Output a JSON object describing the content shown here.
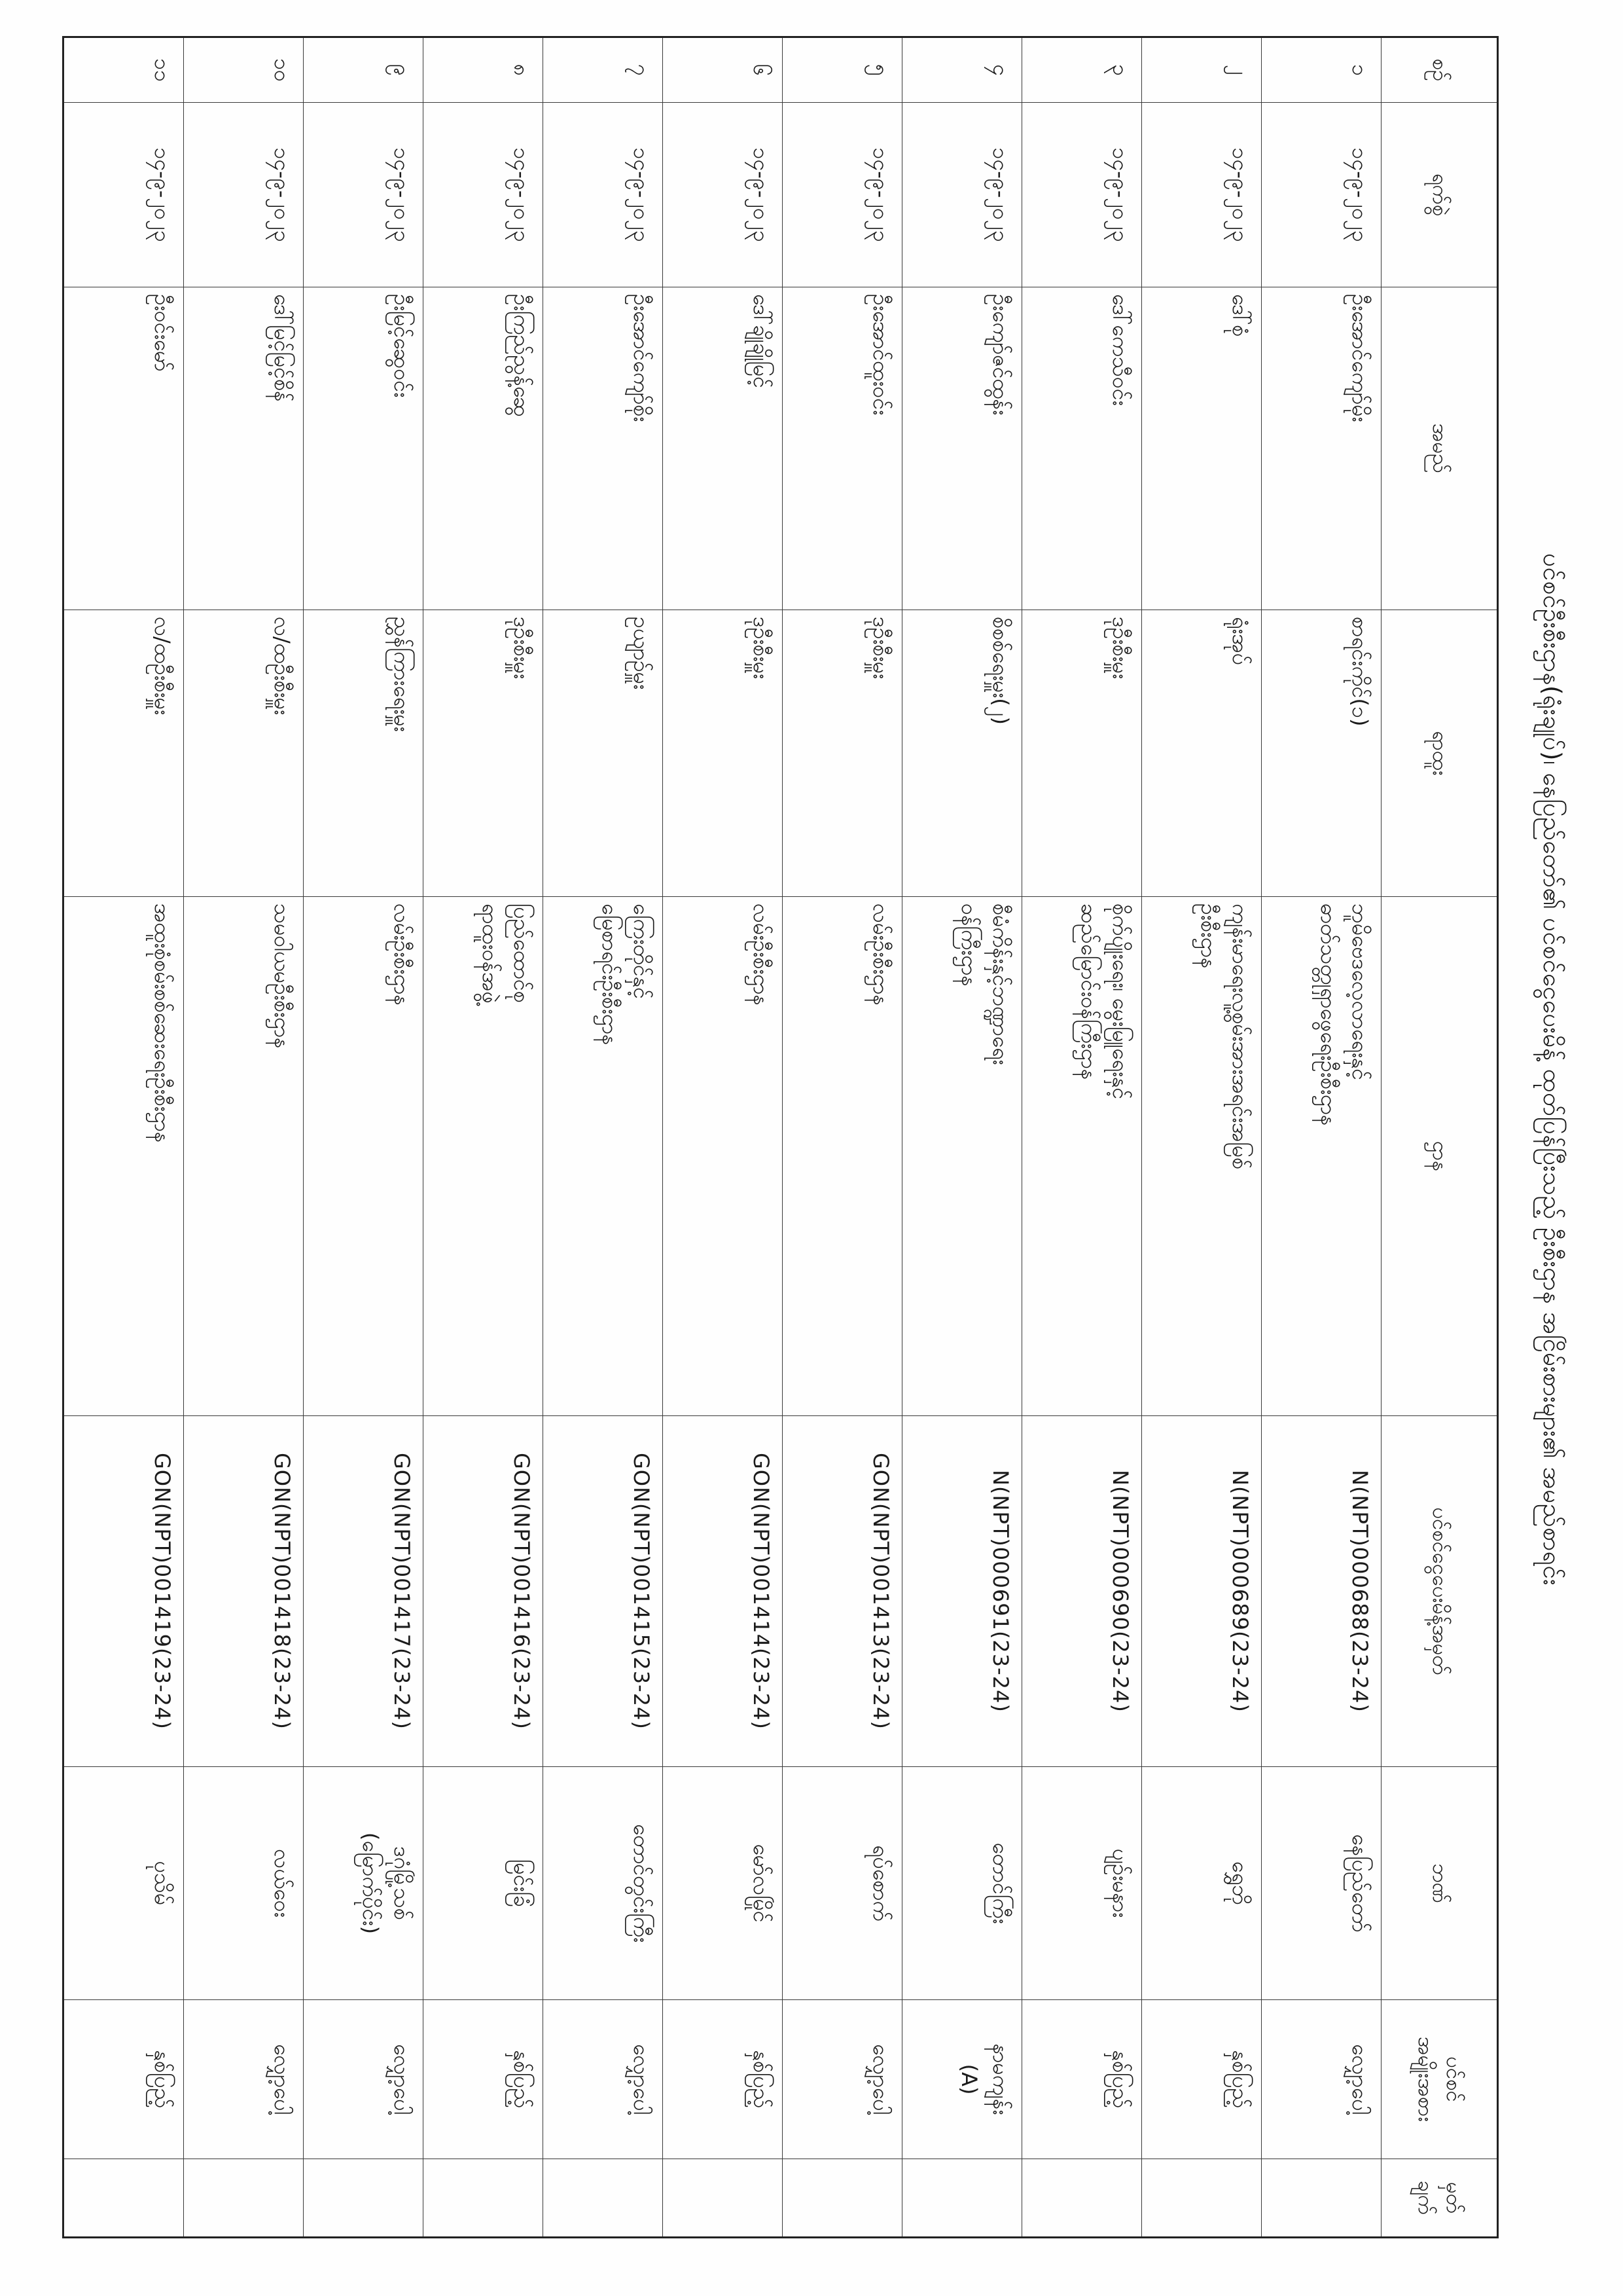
{
  "title": "ပင်စင်ဦးစီးဌာန(ရုံးချုပ်)၊ နေပြည်တော်၏ ပင်စင်ငွေပေးမိန့် ထုတ်ပြန်ပြီးသည့် ဦးစီးဌာန အငြိမ်းစားများ၏ အမည်စာရင်း",
  "table": {
    "headers": {
      "serial": "စဉ်",
      "date": "ရက်စွဲ",
      "name": "အမည်",
      "position": "ရာထူး",
      "department": "ဌာန",
      "order_no": "ပင်စင်ငွေပေးမိန့်အမှတ်",
      "bank": "ဘဏ်",
      "pension_type": [
        "ပင်စင်",
        "အမျိုးအစား"
      ],
      "remark": [
        "မှတ်",
        "ချက်"
      ]
    },
    "rows": [
      {
        "serial": "၁",
        "date": "၁၄-၉-၂၀၂၃",
        "name": "ဦးအောင်ကျော်မိုး",
        "position": "စာရင်းကိုင်(၁)",
        "department": [
          "ဘူမိဗေဒလေ့လာရေးနှင့်",
          "ဓာတ်သတ္တုရှာဖွေရေးဦးစီးဌာန"
        ],
        "order_no": "N(NPT)000688(23-24)",
        "bank": [
          "နေပြည်တော်"
        ],
        "pension_type": [
          "လျှော့ပေါ့"
        ],
        "remark": ""
      },
      {
        "serial": "၂",
        "date": "၁၄-၉-၂၀၂၃",
        "name": "ဒေါ်စုံ",
        "position": "ရုံးအုပ်",
        "department": [
          "ကျန်းမာရေးလူ့စွမ်းအားအရင်းအမြစ်",
          "ဦးစီးဌာန"
        ],
        "order_no": "N(NPT)000689(23-24)",
        "bank": [
          "ရွှေဘို"
        ],
        "pension_type": [
          "နှစ်ပြည့်"
        ],
        "remark": ""
      },
      {
        "serial": "၃",
        "date": "၁၄-၉-၂၀၂၃",
        "name": "ဒေါ်ကေသီဝင်း",
        "position": "ဒုဦးစီးမှူး",
        "department": [
          "စိုက်ပျိုးရေး၊ မွေးမြူရေးနှင့်",
          "ဆည်မြောင်းဝန်ကြီးဌာန"
        ],
        "order_no": "N(NPT)000690(23-24)",
        "bank": [
          "ပျဉ်းမနား"
        ],
        "pension_type": [
          "နှစ်ပြည့်"
        ],
        "remark": ""
      },
      {
        "serial": "၄",
        "date": "၁၄-၉-၂၀၂၃",
        "name": "ဦးကျော်ဇင်ထွန်း",
        "position": "စိစစ်ရေးမှူး(၂)",
        "department": [
          "စီမံကိန်းနှင့်ဘဏ္ဍာရေး",
          "ဝန်ကြီးဌာန"
        ],
        "order_no": "N(NPT)000691(23-24)",
        "bank": [
          "တောင်ကြီး"
        ],
        "pension_type": [
          "နာမကျန်း",
          "(A)"
        ],
        "remark": ""
      },
      {
        "serial": "၅",
        "date": "၁၄-၉-၂၀၂၃",
        "name": "ဦးအောင်ထူးဝင်း",
        "position": "ဒုဦးစီးမှူး",
        "department": [
          "လမ်းဦးစီးဌာန"
        ],
        "order_no": "GON(NPT)001413(23-24)",
        "bank": [
          "ရပ်စောက်"
        ],
        "pension_type": [
          "လျှော့ပေါ့"
        ],
        "remark": ""
      },
      {
        "serial": "၆",
        "date": "၁၄-၉-၂၀၂၃",
        "name": "ဒေါ်ချိုချိုမြင့်",
        "position": "ဒုဦးစီးမှူး",
        "department": [
          "လမ်းဦးစီးဌာန"
        ],
        "order_no": "GON(NPT)001414(23-24)",
        "bank": [
          "မော်လမြိုင်"
        ],
        "pension_type": [
          "နှစ်ပြည့်"
        ],
        "remark": ""
      },
      {
        "serial": "၇",
        "date": "၁၄-၉-၂၀၂၃",
        "name": "ဦးအောင်ကျော်စိုး",
        "position": "ဥယျာဉ်မှူး",
        "department": [
          "ကြေးတိုင်နှင့်",
          "မြေစာရင်းဦးစီးဌာန"
        ],
        "order_no": "GON(NPT)001415(23-24)",
        "bank": [
          "တောင်တွင်းကြီး"
        ],
        "pension_type": [
          "လျှော့ပေါ့"
        ],
        "remark": ""
      },
      {
        "serial": "၈",
        "date": "၁၄-၉-၂၀၂၃",
        "name": "ဦးကြည်ညွန့်ဆွေ",
        "position": "ဒုဦးစီးမှူး",
        "department": [
          "ပြည်ထောင်စု",
          "ရာထူးဝန်အဖွဲ့"
        ],
        "order_no": "GON(NPT)001416(23-24)",
        "bank": [
          "မြင်းခြံ"
        ],
        "pension_type": [
          "နှစ်ပြည့်"
        ],
        "remark": ""
      },
      {
        "serial": "၉",
        "date": "၁၄-၉-၂၀၂၃",
        "name": "ဦးမြင့်ဆွေဝင်း",
        "position": "ညွှန်ကြားရေးမှူး",
        "department": [
          "လမ်းဦးစီးဌာန"
        ],
        "order_no": "GON(NPT)001417(23-24)",
        "bank": [
          "ဒဂုံမြို့သစ်",
          "(မြောက်ပိုင်း)"
        ],
        "pension_type": [
          "လျှော့ပေါ့"
        ],
        "remark": ""
      },
      {
        "serial": "၁၀",
        "date": "၁၄-၉-၂၀၂၃",
        "name": "ဒေါ်မြင့်မြင့်စိန်",
        "position": "လ/ထဦးစီးမှူး",
        "department": [
          "သမဝါယမဦးစီးဌာန"
        ],
        "order_no": "GON(NPT)001418(23-24)",
        "bank": [
          "လယ်ဝေး"
        ],
        "pension_type": [
          "လျှော့ပေါ့"
        ],
        "remark": ""
      },
      {
        "serial": "၁၁",
        "date": "၁၄-၉-၂၀၂၃",
        "name": "ဦးဝင်းမော်",
        "position": "လ/ထဦးစီးမှူး",
        "department": [
          "အထူးစုံစမ်းစစ်ဆေးရေးဦးစီးဌာန"
        ],
        "order_no": "GON(NPT)001419(23-24)",
        "bank": [
          "ပုသိမ်"
        ],
        "pension_type": [
          "နှစ်ပြည့်"
        ],
        "remark": ""
      }
    ]
  }
}
